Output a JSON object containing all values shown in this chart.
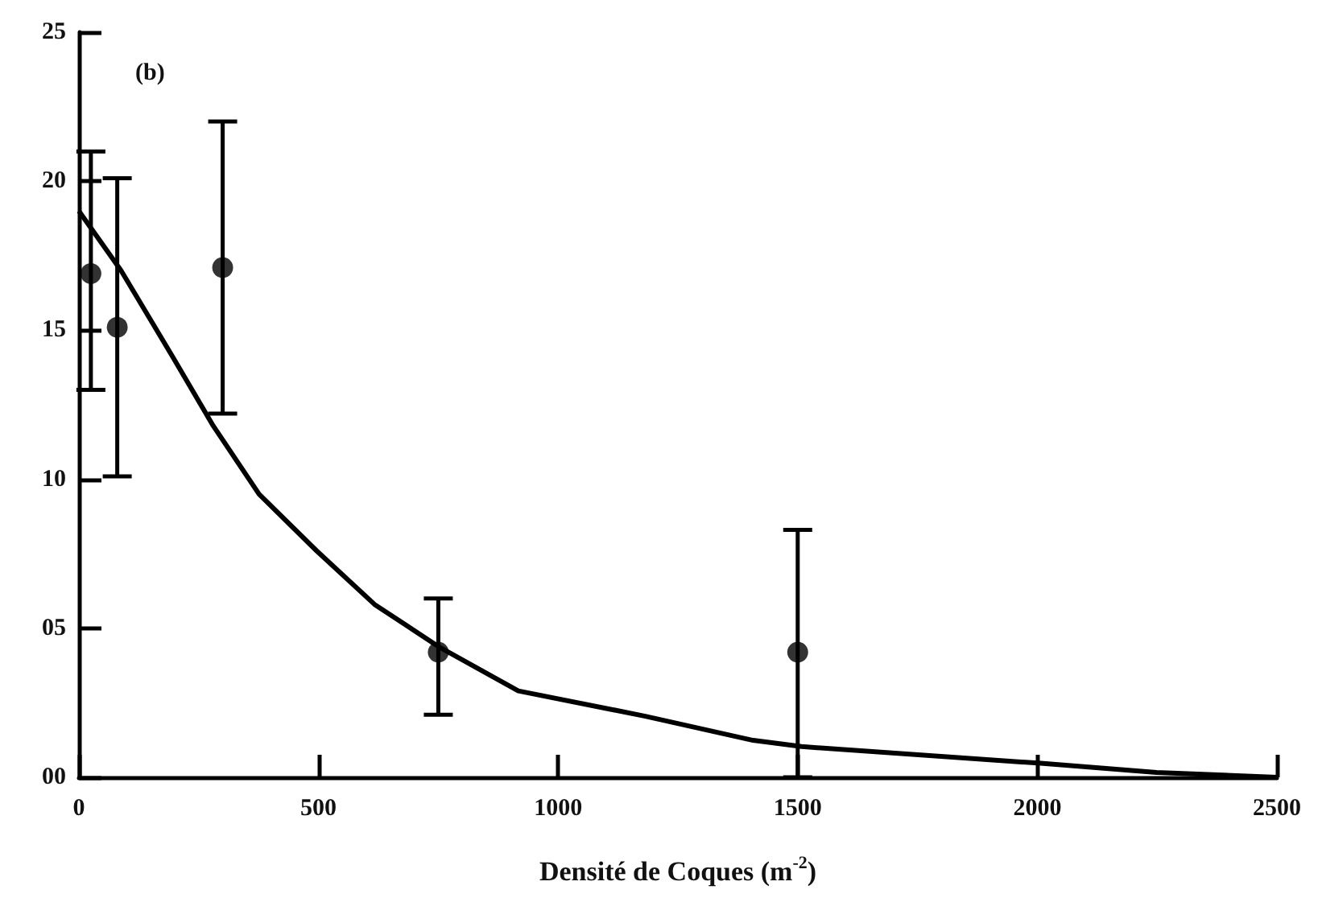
{
  "chart_data": {
    "type": "scatter",
    "xlabel": "Densité de Coques (m$^{-2}$)",
    "annotations": [
      "(b)"
    ],
    "xlim": [
      0,
      2500
    ],
    "xticks": [
      0,
      500,
      1000,
      1500,
      2000,
      2500
    ],
    "ylim": [
      0,
      25
    ],
    "yticks": [
      {
        "value": 0,
        "label": "00"
      },
      {
        "value": 5,
        "label": "05"
      },
      {
        "value": 10,
        "label": "10"
      },
      {
        "value": 15,
        "label": "15"
      },
      {
        "value": 20,
        "label": "20"
      },
      {
        "value": 25,
        "label": "25"
      }
    ],
    "grid": false,
    "series": [
      {
        "color": "#000000",
        "marker": "circle",
        "x": [
          25,
          80,
          300,
          750,
          1500
        ],
        "values": [
          16.9,
          15.1,
          17.1,
          4.2,
          4.2
        ],
        "errors": [
          [
            13.0,
            21.0
          ],
          [
            10.1,
            20.1
          ],
          [
            12.2,
            22.0
          ],
          [
            2.1,
            6.0
          ],
          [
            0,
            8.3
          ]
        ]
      },
      {
        "type": "line",
        "color": "#000000",
        "marker": "none",
        "line_style": "solid",
        "x": [
          0,
          88,
          196,
          280,
          376,
          496,
          617,
          749,
          917,
          1182,
          1407,
          1508,
          2007,
          2249,
          2500
        ],
        "values": [
          19.0,
          17.0,
          14.1,
          11.8,
          9.5,
          7.6,
          5.8,
          4.4,
          2.9,
          2.05,
          1.24,
          1.03,
          0.47,
          0.16,
          0
        ]
      }
    ]
  }
}
